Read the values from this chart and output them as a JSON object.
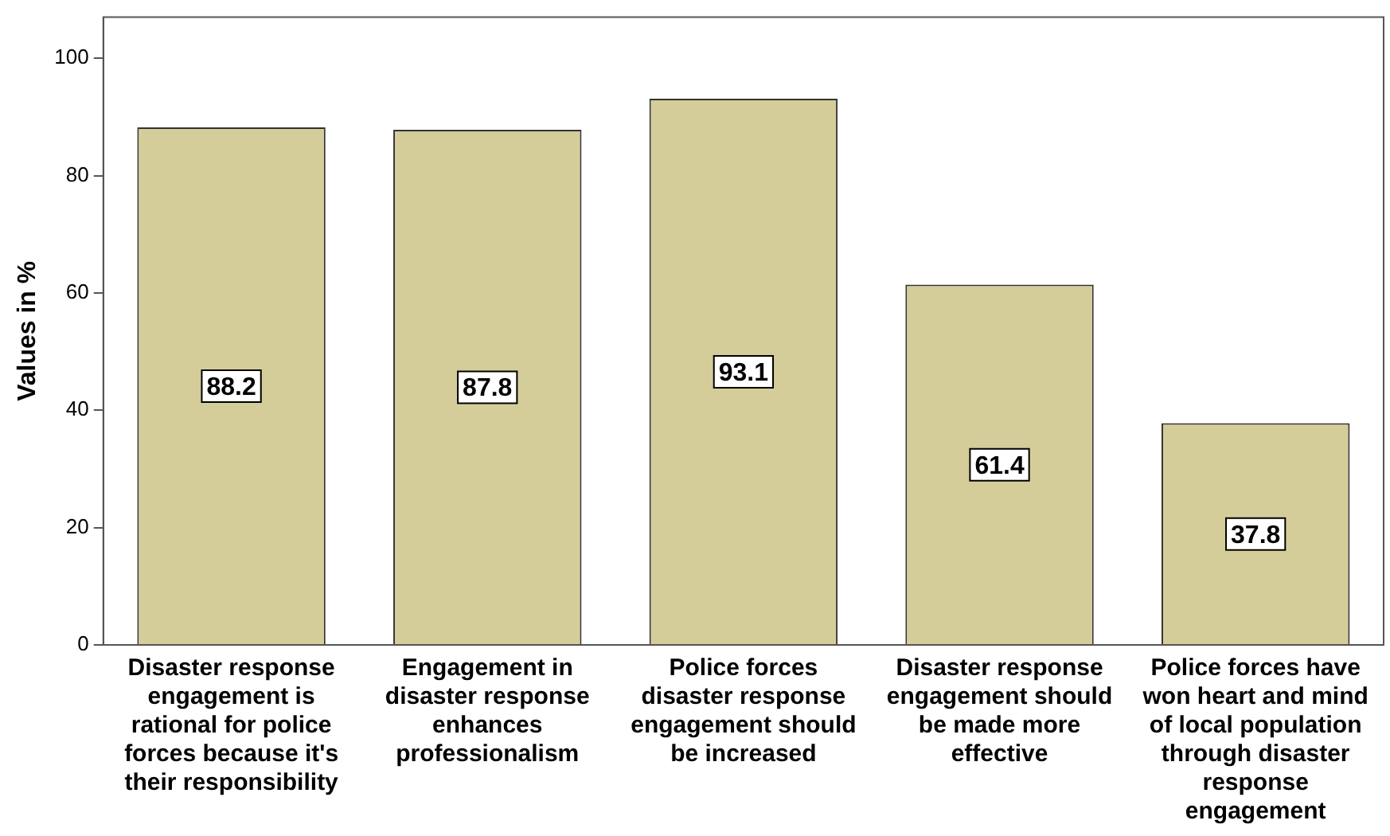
{
  "chart_data": {
    "type": "bar",
    "ylabel": "Values in %",
    "categories": [
      "Disaster response engagement is rational for police forces because it's their responsibility",
      "Engagement in disaster response enhances professionalism",
      "Police forces disaster response engagement should be increased",
      "Disaster response engagement should be made more effective",
      "Police forces have won heart and mind of local population through disaster response engagement"
    ],
    "values": [
      88.2,
      87.8,
      93.1,
      61.4,
      37.8
    ],
    "color": "#d4cd9a",
    "ylim": [
      0,
      107
    ],
    "yticks": [
      0,
      20,
      40,
      60,
      80,
      100
    ],
    "grid": false,
    "legend": false,
    "data_labels": true
  }
}
